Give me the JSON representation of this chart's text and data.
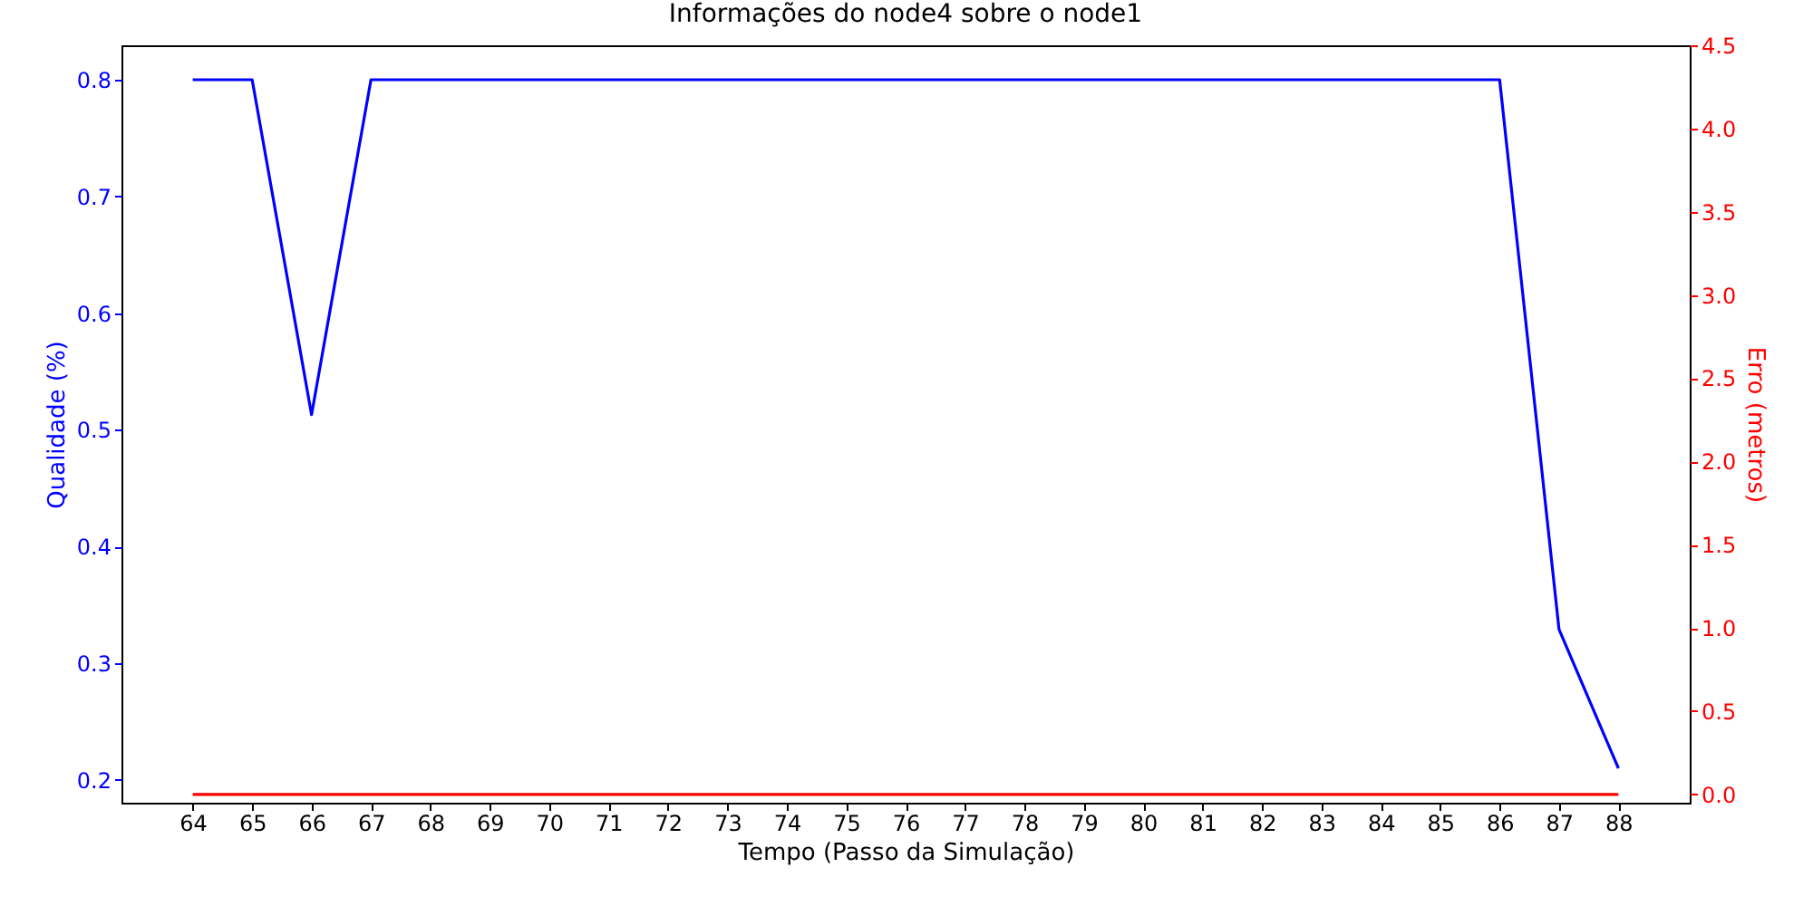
{
  "chart_data": {
    "type": "line",
    "title": "Informações do node4 sobre o node1",
    "xlabel": "Tempo (Passo da Simulação)",
    "ylabel": "Qualidade (%)",
    "y2label": "Erro (metros)",
    "x": [
      64,
      65,
      66,
      67,
      68,
      69,
      70,
      71,
      72,
      73,
      74,
      75,
      76,
      77,
      78,
      79,
      80,
      81,
      82,
      83,
      84,
      85,
      86,
      87,
      88
    ],
    "series": [
      {
        "color": "#0000ff",
        "values": [
          0.8,
          0.8,
          0.513,
          0.8,
          0.8,
          0.8,
          0.8,
          0.8,
          0.8,
          0.8,
          0.8,
          0.8,
          0.8,
          0.8,
          0.8,
          0.8,
          0.8,
          0.8,
          0.8,
          0.8,
          0.8,
          0.8,
          0.8,
          0.329,
          0.21
        ]
      },
      {
        "color": "#ff0000",
        "axis": "y2",
        "values": [
          0,
          0,
          0,
          0,
          0,
          0,
          0,
          0,
          0,
          0,
          0,
          0,
          0,
          0,
          0,
          0,
          0,
          0,
          0,
          0,
          0,
          0,
          0,
          0,
          0
        ]
      }
    ],
    "xlim": [
      62.8,
      89.2
    ],
    "xticks": [
      64,
      65,
      66,
      67,
      68,
      69,
      70,
      71,
      72,
      73,
      74,
      75,
      76,
      77,
      78,
      79,
      80,
      81,
      82,
      83,
      84,
      85,
      86,
      87,
      88
    ],
    "ylim": [
      0.1805,
      0.8295
    ],
    "yticks": [
      0.2,
      0.3,
      0.4,
      0.5,
      0.6,
      0.7,
      0.8
    ],
    "y2lim": [
      -0.05,
      4.5
    ],
    "y2ticks": [
      {
        "value": 0,
        "label": "0.0"
      },
      0.5,
      {
        "value": 1,
        "label": "1.0"
      },
      1.5,
      {
        "value": 2,
        "label": "2.0"
      },
      2.5,
      {
        "value": 3,
        "label": "3.0"
      },
      3.5,
      {
        "value": 4,
        "label": "4.0"
      },
      4.5
    ]
  }
}
